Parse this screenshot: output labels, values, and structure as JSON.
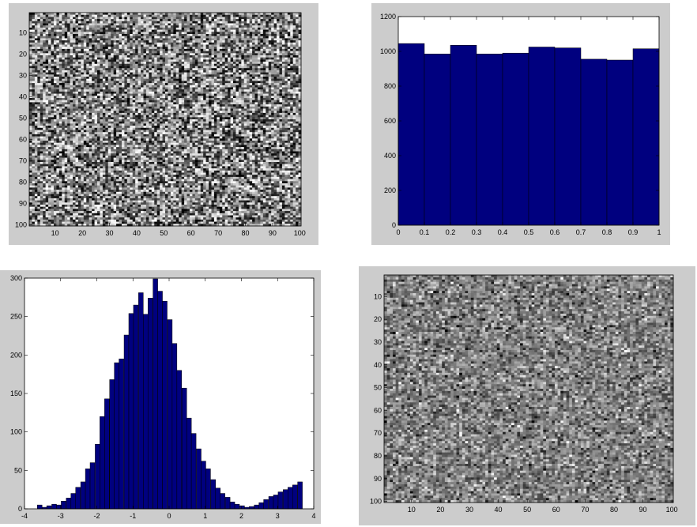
{
  "chart_data": [
    {
      "type": "heatmap",
      "colormap": "gray",
      "grid": false,
      "distribution": "uniform",
      "rows": 100,
      "cols": 100,
      "x_ticks": [
        "10",
        "20",
        "30",
        "40",
        "50",
        "60",
        "70",
        "80",
        "90",
        "100"
      ],
      "y_ticks": [
        "10",
        "20",
        "30",
        "40",
        "50",
        "60",
        "70",
        "80",
        "90",
        "100"
      ],
      "xlim": [
        0.5,
        100.5
      ],
      "ylim": [
        0.5,
        100.5
      ],
      "y_reversed": true
    },
    {
      "type": "bar",
      "grid": false,
      "bar_color": "#00007f",
      "bin_centers": [
        0.05,
        0.15,
        0.25,
        0.35,
        0.45,
        0.55,
        0.65,
        0.75,
        0.85,
        0.95
      ],
      "values": [
        1045,
        985,
        1035,
        985,
        990,
        1025,
        1020,
        955,
        950,
        1015
      ],
      "xlim": [
        0,
        1
      ],
      "ylim": [
        0,
        1200
      ],
      "x_ticks": [
        "0",
        "0.1",
        "0.2",
        "0.3",
        "0.4",
        "0.5",
        "0.6",
        "0.7",
        "0.8",
        "0.9",
        "1"
      ],
      "y_ticks": [
        "0",
        "200",
        "400",
        "600",
        "800",
        "1000",
        "1200"
      ]
    },
    {
      "type": "bar",
      "grid": false,
      "bar_color": "#00007f",
      "bin_centers": [
        -3.58,
        -3.45,
        -3.32,
        -3.18,
        -3.05,
        -2.92,
        -2.78,
        -2.65,
        -2.52,
        -2.38,
        -2.25,
        -2.12,
        -1.98,
        -1.85,
        -1.72,
        -1.58,
        -1.45,
        -1.32,
        -1.18,
        -1.05,
        -0.92,
        -0.78,
        -0.65,
        -0.52,
        -0.38,
        -0.25,
        -0.12,
        0.02,
        0.15,
        0.28,
        0.42,
        0.55,
        0.68,
        0.82,
        0.95,
        1.08,
        1.22,
        1.35,
        1.48,
        1.62,
        1.75,
        1.88,
        2.02,
        2.15,
        2.28,
        2.42,
        2.55,
        2.68,
        2.82,
        2.95,
        3.08,
        3.22,
        3.35,
        3.48,
        3.62
      ],
      "values": [
        5,
        2,
        4,
        6,
        5,
        10,
        14,
        20,
        28,
        35,
        52,
        60,
        84,
        120,
        143,
        168,
        190,
        195,
        226,
        254,
        265,
        281,
        253,
        274,
        299,
        283,
        270,
        246,
        215,
        180,
        157,
        118,
        98,
        78,
        62,
        52,
        38,
        27,
        20,
        15,
        9,
        6,
        4,
        2,
        3,
        5,
        8,
        12,
        16,
        18,
        22,
        25,
        28,
        31,
        35
      ],
      "xlim": [
        -4,
        4
      ],
      "ylim": [
        0,
        300
      ],
      "x_ticks": [
        "-4",
        "-3",
        "-2",
        "-1",
        "0",
        "1",
        "2",
        "3",
        "4"
      ],
      "y_ticks": [
        "0",
        "50",
        "100",
        "150",
        "200",
        "250",
        "300"
      ]
    },
    {
      "type": "heatmap",
      "colormap": "gray",
      "grid": false,
      "distribution": "normal",
      "rows": 100,
      "cols": 100,
      "x_ticks": [
        "10",
        "20",
        "30",
        "40",
        "50",
        "60",
        "70",
        "80",
        "90",
        "100"
      ],
      "y_ticks": [
        "10",
        "20",
        "30",
        "40",
        "50",
        "60",
        "70",
        "80",
        "90",
        "100"
      ],
      "xlim": [
        0.5,
        100.5
      ],
      "ylim": [
        0.5,
        100.5
      ],
      "y_reversed": true
    }
  ]
}
